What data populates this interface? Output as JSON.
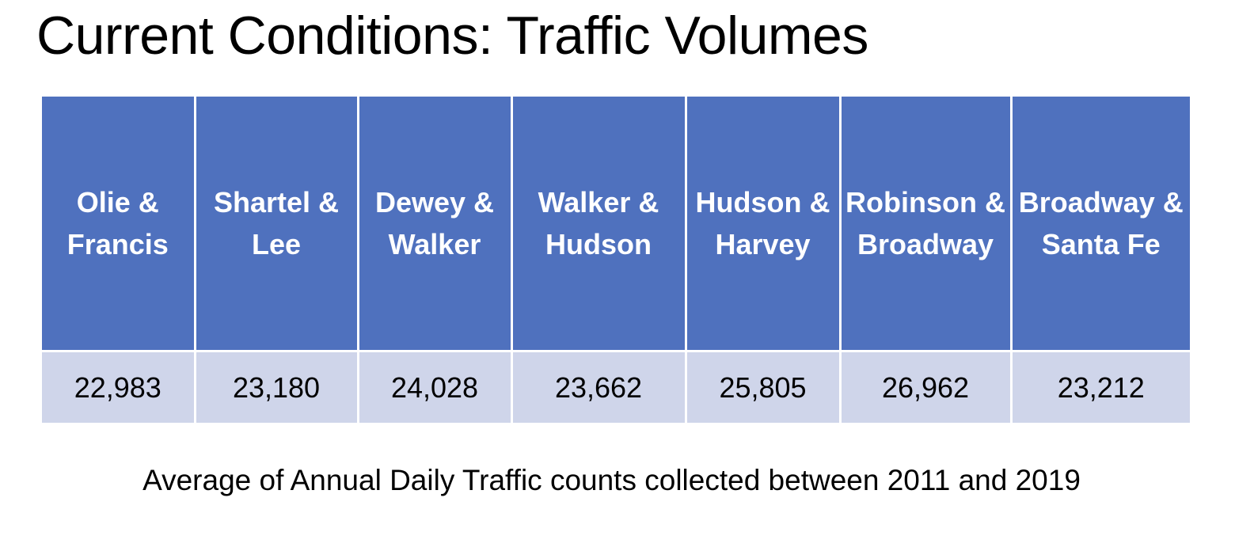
{
  "title": "Current Conditions: Traffic Volumes",
  "table": {
    "headers": [
      "Olie & Francis",
      "Shartel & Lee",
      "Dewey & Walker",
      "Walker & Hudson",
      "Hudson & Harvey",
      "Robinson & Broadway",
      "Broadway & Santa Fe"
    ],
    "values": [
      "22,983",
      "23,180",
      "24,028",
      "23,662",
      "25,805",
      "26,962",
      "23,212"
    ]
  },
  "caption": "Average of Annual Daily Traffic counts collected between 2011 and 2019",
  "colors": {
    "header_bg": "#4F71BE",
    "row_bg": "#CFD5EA"
  }
}
